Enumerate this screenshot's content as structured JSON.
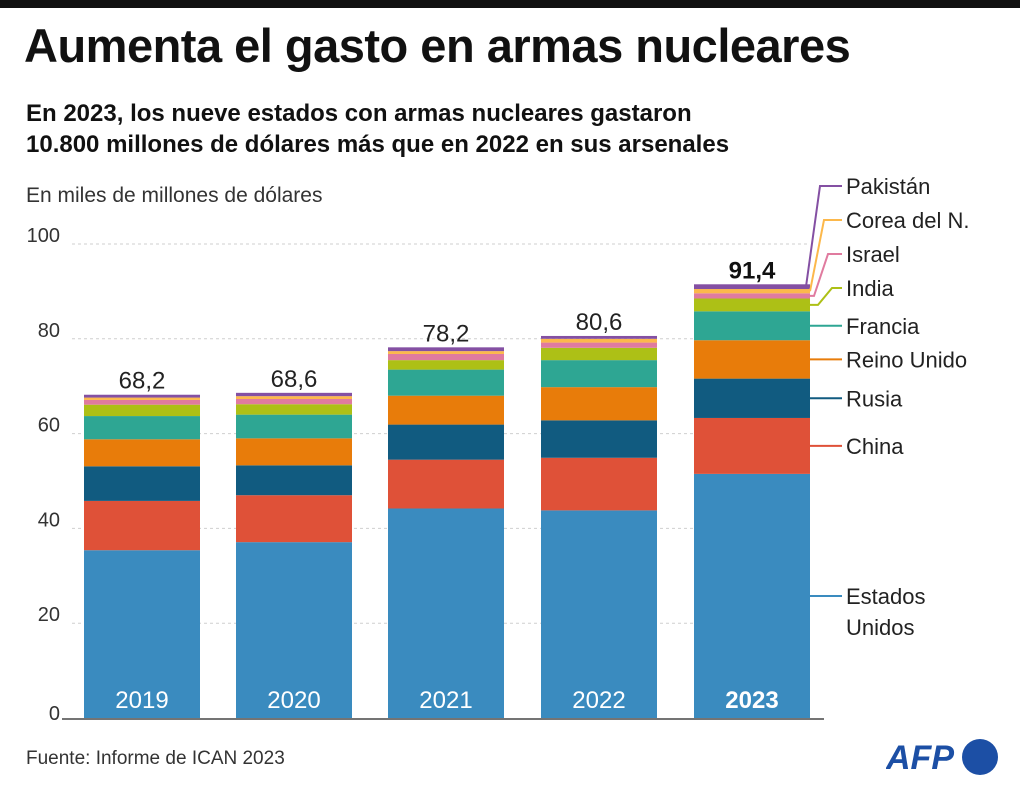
{
  "header": {
    "title": "Aumenta el gasto en armas nucleares",
    "subtitle_line1": "En 2023, los nueve estados con armas nucleares gastaron",
    "subtitle_line2": "10.800 millones de dólares más que en 2022 en sus arsenales"
  },
  "footer": {
    "source": "Fuente: Informe de ICAN 2023",
    "logo_text": "AFP",
    "logo_color": "#1c4fa5"
  },
  "chart_data": {
    "type": "bar",
    "stacked": true,
    "title": "Aumenta el gasto en armas nucleares",
    "ylabel": "En miles de millones de dólares",
    "xlabel": "",
    "ylim": [
      0,
      100
    ],
    "yticks": [
      0,
      20,
      40,
      60,
      80,
      100
    ],
    "grid": true,
    "legend_position": "right",
    "categories": [
      "2019",
      "2020",
      "2021",
      "2022",
      "2023"
    ],
    "highlight_category": "2023",
    "totals": [
      "68,2",
      "68,6",
      "78,2",
      "80,6",
      "91,4"
    ],
    "series": [
      {
        "name": "Estados Unidos",
        "label_lines": [
          "Estados",
          "Unidos"
        ],
        "color": "#3a8bbf",
        "values": [
          35.4,
          37.1,
          44.2,
          43.8,
          51.5
        ]
      },
      {
        "name": "China",
        "label_lines": [
          "China"
        ],
        "color": "#df5138",
        "values": [
          10.4,
          9.9,
          10.3,
          11.1,
          11.8
        ]
      },
      {
        "name": "Rusia",
        "label_lines": [
          "Rusia"
        ],
        "color": "#115b80",
        "values": [
          7.3,
          6.3,
          7.4,
          7.9,
          8.3
        ]
      },
      {
        "name": "Reino Unido",
        "label_lines": [
          "Reino Unido"
        ],
        "color": "#e87c0a",
        "values": [
          5.7,
          5.7,
          6.1,
          7.0,
          8.1
        ]
      },
      {
        "name": "Francia",
        "label_lines": [
          "Francia"
        ],
        "color": "#2ea693",
        "values": [
          4.9,
          5.0,
          5.5,
          5.7,
          6.1
        ]
      },
      {
        "name": "India",
        "label_lines": [
          "India"
        ],
        "color": "#adc016",
        "values": [
          2.4,
          2.2,
          2.0,
          2.6,
          2.7
        ]
      },
      {
        "name": "Israel",
        "label_lines": [
          "Israel"
        ],
        "color": "#e07b9f",
        "values": [
          1.0,
          1.1,
          1.3,
          1.1,
          1.1
        ]
      },
      {
        "name": "Corea del N.",
        "label_lines": [
          "Corea del N."
        ],
        "color": "#fcb84b",
        "values": [
          0.5,
          0.6,
          0.6,
          0.8,
          0.9
        ]
      },
      {
        "name": "Pakistán",
        "label_lines": [
          "Pakistán"
        ],
        "color": "#8450a3",
        "values": [
          0.6,
          0.7,
          0.8,
          0.6,
          1.0
        ]
      }
    ]
  }
}
